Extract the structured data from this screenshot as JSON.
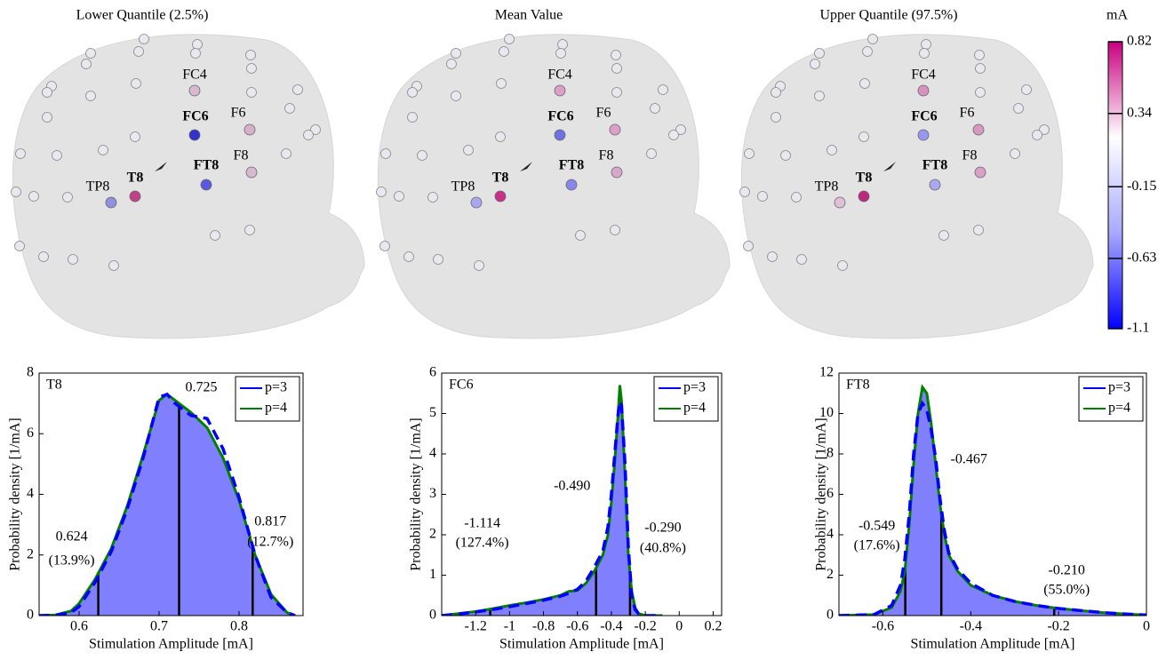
{
  "heads": [
    {
      "title": "Lower Quantile (2.5%)",
      "electrodes": [
        {
          "label": "FC4",
          "color": "#d8b8d0",
          "bold": false
        },
        {
          "label": "FC6",
          "color": "#3333cc",
          "bold": true
        },
        {
          "label": "F6",
          "color": "#d9b0cc",
          "bold": false
        },
        {
          "label": "F8",
          "color": "#d8b8cf",
          "bold": false
        },
        {
          "label": "T8",
          "color": "#c0408a",
          "bold": true
        },
        {
          "label": "FT8",
          "color": "#5a5ae0",
          "bold": true
        },
        {
          "label": "TP8",
          "color": "#9090e0",
          "bold": false
        }
      ]
    },
    {
      "title": "Mean Value",
      "electrodes": [
        {
          "label": "FC4",
          "color": "#dca0c8",
          "bold": false
        },
        {
          "label": "FC6",
          "color": "#7070e0",
          "bold": true
        },
        {
          "label": "F6",
          "color": "#dca0c8",
          "bold": false
        },
        {
          "label": "F8",
          "color": "#d8a8cc",
          "bold": false
        },
        {
          "label": "T8",
          "color": "#c8308a",
          "bold": true
        },
        {
          "label": "FT8",
          "color": "#8888ec",
          "bold": true
        },
        {
          "label": "TP8",
          "color": "#a8a8f0",
          "bold": false
        }
      ]
    },
    {
      "title": "Upper Quantile (97.5%)",
      "electrodes": [
        {
          "label": "FC4",
          "color": "#d890c0",
          "bold": false
        },
        {
          "label": "FC6",
          "color": "#9898f0",
          "bold": true
        },
        {
          "label": "F6",
          "color": "#d898c4",
          "bold": false
        },
        {
          "label": "F8",
          "color": "#d8a0c8",
          "bold": false
        },
        {
          "label": "T8",
          "color": "#c02880",
          "bold": true
        },
        {
          "label": "FT8",
          "color": "#a8a8f4",
          "bold": true
        },
        {
          "label": "TP8",
          "color": "#e0c0d8",
          "bold": false
        }
      ]
    }
  ],
  "colorbar": {
    "unit": "mA",
    "lim": [
      -1.1,
      0.82
    ],
    "ticks": [
      0.82,
      0.34,
      -0.15,
      -0.63,
      -1.1
    ],
    "colormap": [
      "#0000ff",
      "#a8a8ff",
      "#ffffff",
      "#c8007f"
    ]
  },
  "chart_data": [
    {
      "type": "line",
      "title": "T8",
      "x_label": "Stimulation Amplitude [mA]",
      "y_label": "Probability density [1/mA]",
      "x": [
        0.55,
        0.57,
        0.59,
        0.6,
        0.62,
        0.64,
        0.66,
        0.68,
        0.7,
        0.71,
        0.72,
        0.74,
        0.76,
        0.78,
        0.8,
        0.82,
        0.84,
        0.86,
        0.87
      ],
      "series": [
        {
          "name": "p=3",
          "color": "#0000ff",
          "style": "dashed",
          "values": [
            0,
            0.01,
            0.1,
            0.3,
            1.1,
            2.1,
            3.5,
            5.2,
            7.2,
            7.3,
            7.0,
            6.6,
            6.5,
            5.5,
            3.9,
            2.0,
            0.6,
            0.1,
            0
          ]
        },
        {
          "name": "p=4",
          "color": "#007f00",
          "style": "solid",
          "values": [
            0,
            0.02,
            0.15,
            0.4,
            1.2,
            2.2,
            3.6,
            5.3,
            7.1,
            7.3,
            7.1,
            6.7,
            6.2,
            5.2,
            3.8,
            2.0,
            0.7,
            0.1,
            0
          ]
        }
      ],
      "fill_color": "#8080ff",
      "xlim": [
        0.55,
        0.88
      ],
      "ylim": [
        0,
        8
      ],
      "xticks": [
        0.6,
        0.7,
        0.8
      ],
      "yticks": [
        0,
        2,
        4,
        6,
        8
      ],
      "legend": "upper right",
      "quantiles": [
        {
          "value": 0.624,
          "label": "0.624",
          "share": "(13.9%)"
        },
        {
          "value": 0.725,
          "label": "0.725"
        },
        {
          "value": 0.817,
          "label": "0.817",
          "share": "(12.7%)"
        }
      ]
    },
    {
      "type": "line",
      "title": "FC6",
      "x_label": "Stimulation Amplitude [mA]",
      "y_label": "Probability density [1/mA]",
      "x": [
        -1.4,
        -1.3,
        -1.2,
        -1.1,
        -1.0,
        -0.9,
        -0.8,
        -0.7,
        -0.65,
        -0.6,
        -0.55,
        -0.5,
        -0.45,
        -0.42,
        -0.4,
        -0.38,
        -0.36,
        -0.35,
        -0.34,
        -0.32,
        -0.3,
        -0.28,
        -0.26,
        -0.24,
        -0.2,
        -0.1
      ],
      "series": [
        {
          "name": "p=3",
          "color": "#0000ff",
          "style": "dashed",
          "values": [
            0,
            0.04,
            0.09,
            0.15,
            0.22,
            0.3,
            0.38,
            0.48,
            0.55,
            0.65,
            0.85,
            1.2,
            1.6,
            2.2,
            3.0,
            4.0,
            5.0,
            5.3,
            5.2,
            3.8,
            1.7,
            0.5,
            0.15,
            0.05,
            0,
            0
          ]
        },
        {
          "name": "p=4",
          "color": "#007f00",
          "style": "solid",
          "values": [
            0,
            0.05,
            0.1,
            0.17,
            0.25,
            0.32,
            0.4,
            0.5,
            0.6,
            0.62,
            0.8,
            1.1,
            1.5,
            2.0,
            2.8,
            3.8,
            5.0,
            5.7,
            5.3,
            3.5,
            1.5,
            0.6,
            0.2,
            0.05,
            0,
            0
          ]
        }
      ],
      "fill_color": "#8080ff",
      "xlim": [
        -1.4,
        0.25
      ],
      "ylim": [
        0,
        6
      ],
      "xticks": [
        -1.2,
        -1,
        -0.8,
        -0.6,
        -0.4,
        -0.2,
        0,
        0.2
      ],
      "yticks": [
        0,
        1,
        2,
        3,
        4,
        5,
        6
      ],
      "legend": "upper right",
      "quantiles": [
        {
          "value": -1.114,
          "label": "-1.114",
          "share": "(127.4%)"
        },
        {
          "value": -0.49,
          "label": "-0.490"
        },
        {
          "value": -0.29,
          "label": "-0.290",
          "share": "(40.8%)"
        }
      ]
    },
    {
      "type": "line",
      "title": "FT8",
      "x_label": "Stimulation Amplitude [mA]",
      "y_label": "Probability density [1/mA]",
      "x": [
        -0.7,
        -0.62,
        -0.58,
        -0.56,
        -0.55,
        -0.54,
        -0.53,
        -0.52,
        -0.51,
        -0.5,
        -0.49,
        -0.48,
        -0.47,
        -0.46,
        -0.45,
        -0.43,
        -0.4,
        -0.35,
        -0.3,
        -0.25,
        -0.2,
        -0.15,
        -0.1,
        -0.05,
        0
      ],
      "series": [
        {
          "name": "p=3",
          "color": "#0000ff",
          "style": "dashed",
          "values": [
            0,
            0.05,
            0.5,
            1.5,
            2.8,
            5.0,
            8.0,
            10.0,
            10.5,
            10.2,
            9.2,
            7.8,
            5.8,
            4.2,
            3.1,
            2.3,
            1.6,
            1.0,
            0.7,
            0.5,
            0.35,
            0.25,
            0.15,
            0.08,
            0.03
          ]
        },
        {
          "name": "p=4",
          "color": "#007f00",
          "style": "solid",
          "values": [
            0,
            0.05,
            0.4,
            1.2,
            2.2,
            4.5,
            7.5,
            10.0,
            11.3,
            11.0,
            9.5,
            7.5,
            5.5,
            4.0,
            3.0,
            2.2,
            1.5,
            1.0,
            0.7,
            0.5,
            0.35,
            0.25,
            0.15,
            0.08,
            0.03
          ]
        }
      ],
      "fill_color": "#8080ff",
      "xlim": [
        -0.7,
        0
      ],
      "ylim": [
        0,
        12
      ],
      "xticks": [
        -0.6,
        -0.4,
        -0.2,
        0
      ],
      "yticks": [
        0,
        2,
        4,
        6,
        8,
        10,
        12
      ],
      "legend": "upper right",
      "quantiles": [
        {
          "value": -0.549,
          "label": "-0.549",
          "share": "(17.6%)"
        },
        {
          "value": -0.467,
          "label": "-0.467"
        },
        {
          "value": -0.21,
          "label": "-0.210",
          "share": "(55.0%)"
        }
      ]
    }
  ]
}
